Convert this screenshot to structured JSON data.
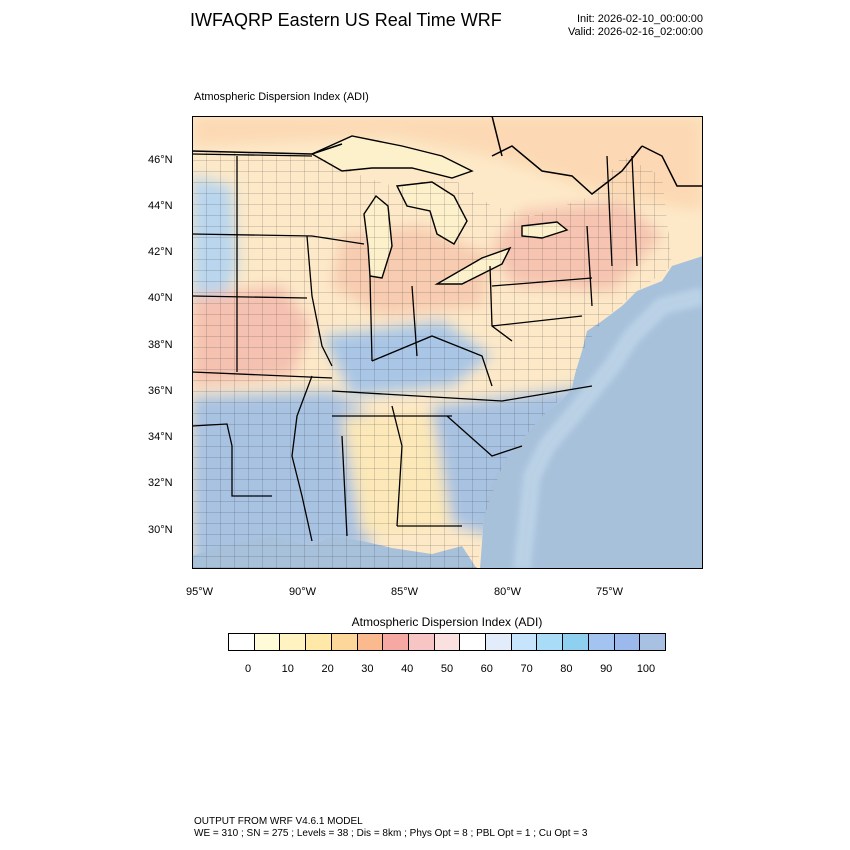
{
  "header": {
    "title": "IWFAQRP Eastern US Real Time WRF",
    "init": "Init: 2026-02-10_00:00:00",
    "valid": "Valid: 2026-02-16_02:00:00"
  },
  "panel": {
    "variable_title": "Atmospheric Dispersion Index   (ADI)"
  },
  "map": {
    "lat_labels": [
      "46°N",
      "44°N",
      "42°N",
      "40°N",
      "38°N",
      "36°N",
      "34°N",
      "32°N",
      "30°N"
    ],
    "lon_labels": [
      "95°W",
      "90°W",
      "85°W",
      "80°W",
      "75°W"
    ]
  },
  "colorbar": {
    "title": "Atmospheric Dispersion Index  (ADI)",
    "labels": [
      "0",
      "10",
      "20",
      "30",
      "40",
      "50",
      "60",
      "70",
      "80",
      "90",
      "100"
    ],
    "colors": [
      "#ffffff",
      "#fffbd8",
      "#fff3c2",
      "#ffe8a8",
      "#fdd79a",
      "#fbb98e",
      "#f6a8a2",
      "#f8c5c5",
      "#fbe0e0",
      "#ffffff",
      "#e3ecfb",
      "#c6e4fb",
      "#a8dcf7",
      "#8fd0f1",
      "#a3c4f0",
      "#9bb9ec",
      "#a8c0e2"
    ]
  },
  "footer": {
    "line1": "OUTPUT FROM WRF V4.6.1 MODEL",
    "line2": "WE = 310 ; SN = 275 ; Levels = 38 ; Dis = 8km ; Phys Opt = 8 ; PBL Opt = 1 ; Cu Opt = 3"
  }
}
